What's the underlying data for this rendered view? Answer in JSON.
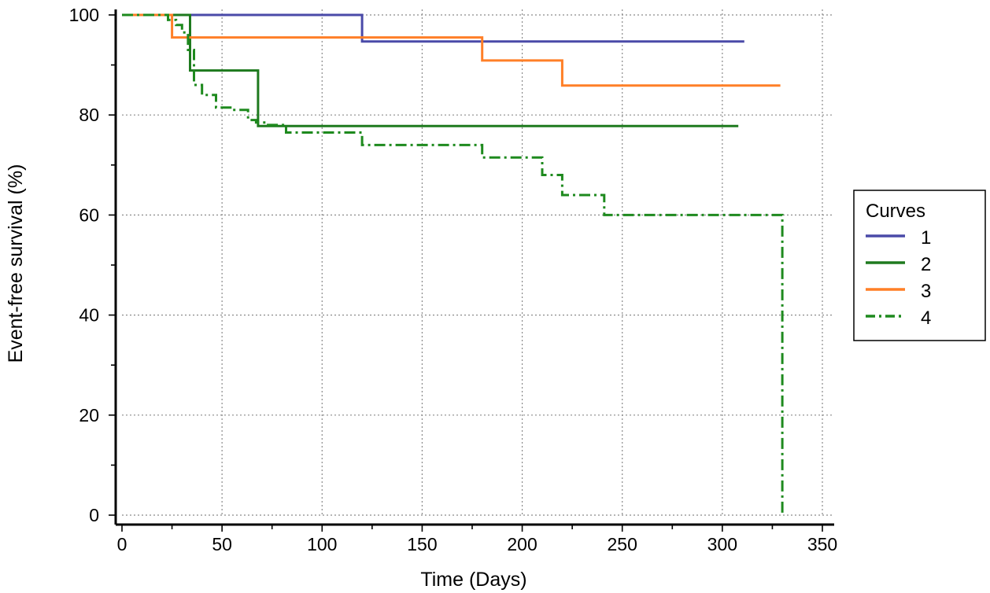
{
  "chart_data": {
    "type": "line",
    "step": true,
    "title": "",
    "xlabel": "Time (Days)",
    "ylabel": "Event-free survival (%)",
    "xlim": [
      0,
      350
    ],
    "ylim": [
      0,
      100
    ],
    "xticks": [
      0,
      50,
      100,
      150,
      200,
      250,
      300,
      350
    ],
    "yticks": [
      0,
      20,
      40,
      60,
      80,
      100
    ],
    "grid": true,
    "legend": {
      "title": "Curves",
      "placement": "right"
    },
    "series": [
      {
        "name": "1",
        "color": "#4a4aa8",
        "dash": "solid",
        "x": [
          0,
          120,
          120,
          311
        ],
        "y": [
          100,
          100,
          94.7,
          94.7
        ]
      },
      {
        "name": "2",
        "color": "#1e7a1e",
        "dash": "solid",
        "x": [
          0,
          34,
          34,
          68,
          68,
          308
        ],
        "y": [
          100,
          100,
          88.9,
          88.9,
          77.8,
          77.8
        ]
      },
      {
        "name": "3",
        "color": "#ff7f27",
        "dash": "solid",
        "x": [
          0,
          25,
          25,
          180,
          180,
          220,
          220,
          329
        ],
        "y": [
          100,
          100,
          95.5,
          95.5,
          90.9,
          90.9,
          85.9,
          85.9
        ]
      },
      {
        "name": "4",
        "color": "#1e8a1e",
        "dash": "dashdot",
        "x": [
          0,
          23,
          23,
          27,
          27,
          30,
          30,
          33,
          33,
          36,
          36,
          40,
          40,
          47,
          47,
          55,
          55,
          63,
          63,
          67,
          67,
          72,
          72,
          82,
          82,
          120,
          120,
          180,
          180,
          210,
          210,
          220,
          220,
          241,
          241,
          330,
          330
        ],
        "y": [
          100,
          100,
          99,
          99,
          98,
          98,
          96.5,
          96.5,
          93,
          93,
          86,
          86,
          84,
          84,
          81.5,
          81.5,
          81,
          81,
          79,
          79,
          78.5,
          78.5,
          78,
          78,
          76.5,
          76.5,
          74,
          74,
          71.5,
          71.5,
          68,
          68,
          64,
          64,
          60,
          60,
          0
        ]
      }
    ]
  }
}
